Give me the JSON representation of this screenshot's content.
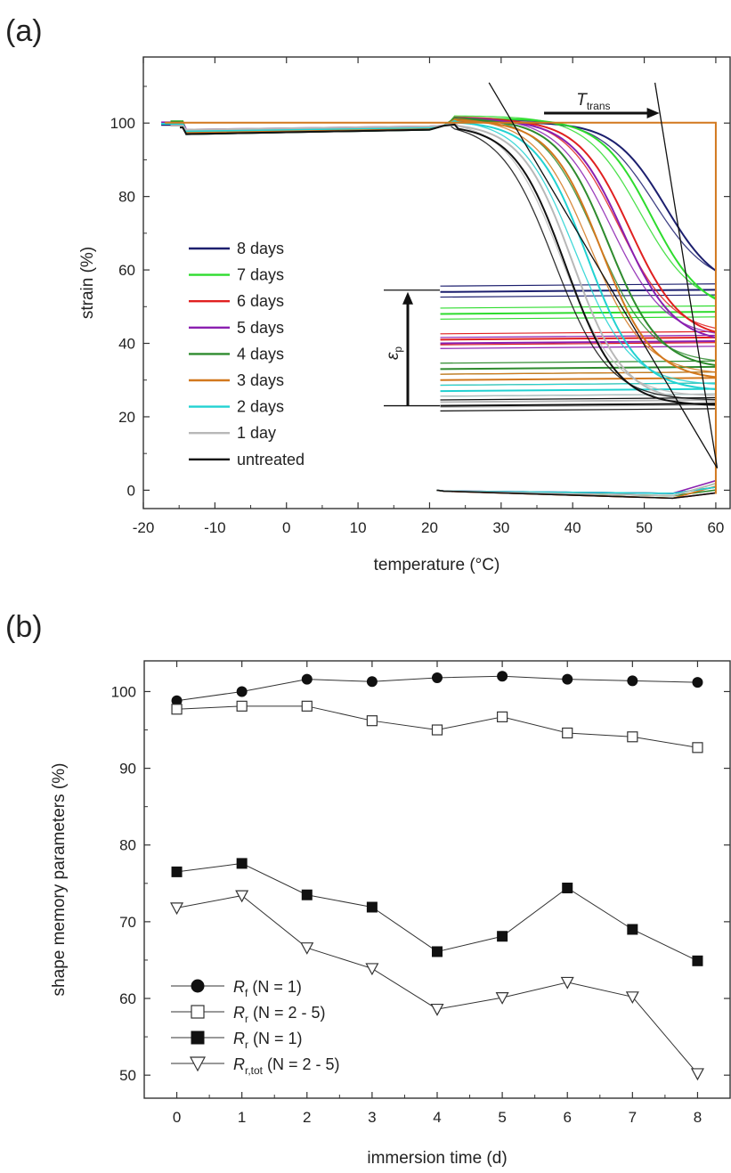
{
  "panels": {
    "a": {
      "label": "(a)"
    },
    "b": {
      "label": "(b)"
    }
  },
  "chart_data": [
    {
      "type": "line",
      "xlabel": "temperature (°C)",
      "ylabel": "strain (%)",
      "xlim": [
        -20,
        62
      ],
      "ylim": [
        -5,
        118
      ],
      "xticks": [
        -20,
        -10,
        0,
        10,
        20,
        30,
        40,
        50,
        60
      ],
      "yticks": [
        0,
        20,
        40,
        60,
        80,
        100
      ],
      "annotations": {
        "T_main": "T",
        "T_sub": "trans",
        "eps_main": "ε",
        "eps_sub": "p"
      },
      "series": [
        {
          "name": "8 days",
          "color": "#1c1f6e",
          "fixed": 99.5,
          "mid": 53,
          "unl": 54,
          "rec": 54
        },
        {
          "name": "7 days",
          "color": "#2edc2e",
          "fixed": 100.5,
          "mid": 51,
          "unl": 48,
          "rec": 48
        },
        {
          "name": "6 days",
          "color": "#e02020",
          "fixed": 100.3,
          "mid": 48,
          "unl": 41,
          "rec": 41
        },
        {
          "name": "5 days",
          "color": "#8a1fb0",
          "fixed": 100.2,
          "mid": 47,
          "unl": 40,
          "rec": 40
        },
        {
          "name": "4 days",
          "color": "#2e8b2e",
          "fixed": 100.4,
          "mid": 45,
          "unl": 33,
          "rec": 33
        },
        {
          "name": "3 days",
          "color": "#d2781e",
          "fixed": 100.1,
          "mid": 44,
          "unl": 30,
          "rec": 30
        },
        {
          "name": "2 days",
          "color": "#22d2d2",
          "fixed": 99.8,
          "mid": 42,
          "unl": 27,
          "rec": 27
        },
        {
          "name": "1 day",
          "color": "#b8b8b8",
          "fixed": 99.3,
          "mid": 40,
          "unl": 24,
          "rec": 24
        },
        {
          "name": "untreated",
          "color": "#111111",
          "fixed": 98.8,
          "mid": 39,
          "unl": 23,
          "rec": 23
        }
      ],
      "legend": "left"
    },
    {
      "type": "line",
      "xlabel": "immersion time (d)",
      "ylabel": "shape memory parameters (%)",
      "xlim": [
        -0.5,
        8.5
      ],
      "ylim": [
        47,
        104
      ],
      "x": [
        0,
        1,
        2,
        3,
        4,
        5,
        6,
        7,
        8
      ],
      "xticks": [
        0,
        1,
        2,
        3,
        4,
        5,
        6,
        7,
        8
      ],
      "yticks": [
        50,
        60,
        70,
        80,
        90,
        100
      ],
      "series": [
        {
          "name_main": "R",
          "name_sub": "f",
          "name_rest": " (N = 1)",
          "marker": "circle-filled",
          "values": [
            98.8,
            100,
            101.6,
            101.3,
            101.8,
            102,
            101.6,
            101.4,
            101.2
          ]
        },
        {
          "name_main": "R",
          "name_sub": "r",
          "name_rest": " (N = 2 - 5)",
          "marker": "square-open",
          "values": [
            97.7,
            98.1,
            98.1,
            96.2,
            95,
            96.7,
            94.6,
            94.1,
            92.7
          ]
        },
        {
          "name_main": "R",
          "name_sub": "r",
          "name_rest": " (N = 1)",
          "marker": "square-filled",
          "values": [
            76.5,
            77.6,
            73.5,
            71.9,
            66.1,
            68.1,
            74.4,
            69,
            64.9
          ]
        },
        {
          "name_main": "R",
          "name_sub": "r,tot",
          "name_rest": " (N = 2 - 5)",
          "marker": "triangle-down-open",
          "values": [
            71.8,
            73.4,
            66.6,
            63.9,
            58.6,
            60.1,
            62.1,
            60.2,
            50.2
          ]
        }
      ],
      "legend": "bottom-left"
    }
  ]
}
